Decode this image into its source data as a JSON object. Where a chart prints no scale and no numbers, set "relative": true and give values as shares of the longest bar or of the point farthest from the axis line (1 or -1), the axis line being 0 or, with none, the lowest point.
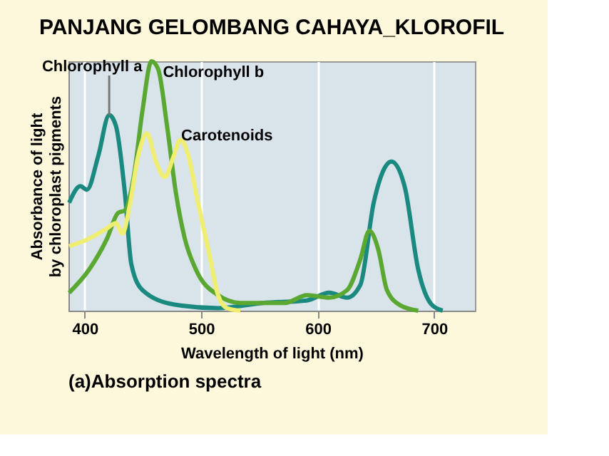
{
  "chart_data": {
    "type": "line",
    "title": "PANJANG GELOMBANG CAHAYA_KLOROFIL",
    "xlabel": "Wavelength of light (nm)",
    "ylabel": "Absorbance of light by chloroplast pigments",
    "relative": true,
    "xlim": [
      386,
      735
    ],
    "xticks": [
      400,
      500,
      600,
      700
    ],
    "grid": "x",
    "legend": false,
    "annotations": [
      "(a)Absorption spectra"
    ],
    "series": [
      {
        "name": "Chlorophyll a",
        "color": "#1a8a80",
        "x": [
          386.6,
          396.2,
          401.9,
          411.5,
          421,
          426.7,
          434.4,
          440,
          449.6,
          476.3,
          514.5,
          552.7,
          590.8,
          609.9,
          625.2,
          636.6,
          648.1,
          663.4,
          674.8,
          686.3,
          697.7,
          707.3
        ],
        "values": [
          0.433,
          0.499,
          0.485,
          0.619,
          0.784,
          0.742,
          0.474,
          0.186,
          0.082,
          0.025,
          0.01,
          0.031,
          0.041,
          0.072,
          0.052,
          0.103,
          0.433,
          0.598,
          0.495,
          0.165,
          0.025,
          0
        ]
      },
      {
        "name": "Chlorophyll b",
        "color": "#5aa832",
        "x": [
          386.6,
          403.8,
          419.1,
          428.6,
          434.4,
          442,
          449.6,
          457.3,
          463,
          470.6,
          478.2,
          485.9,
          495.4,
          514.5,
          533.6,
          571.8,
          590.8,
          609.9,
          625.2,
          636.6,
          644.3,
          651.9,
          659.5,
          671,
          686.3
        ],
        "values": [
          0.072,
          0.165,
          0.289,
          0.392,
          0.402,
          0.536,
          0.804,
          1,
          0.969,
          0.742,
          0.474,
          0.289,
          0.165,
          0.062,
          0.031,
          0.031,
          0.062,
          0.052,
          0.082,
          0.206,
          0.32,
          0.247,
          0.082,
          0.021,
          0
        ]
      },
      {
        "name": "Carotenoids",
        "color": "#f0ee70",
        "x": [
          386.6,
          403.8,
          419.1,
          426.7,
          432.4,
          438.2,
          445.8,
          453.4,
          461.1,
          468.7,
          476.3,
          482.1,
          489.7,
          495.4,
          506.9,
          514.5,
          522.1,
          533.6
        ],
        "values": [
          0.258,
          0.289,
          0.33,
          0.351,
          0.309,
          0.412,
          0.619,
          0.711,
          0.598,
          0.536,
          0.619,
          0.685,
          0.608,
          0.474,
          0.227,
          0.062,
          0.01,
          0
        ]
      }
    ]
  }
}
